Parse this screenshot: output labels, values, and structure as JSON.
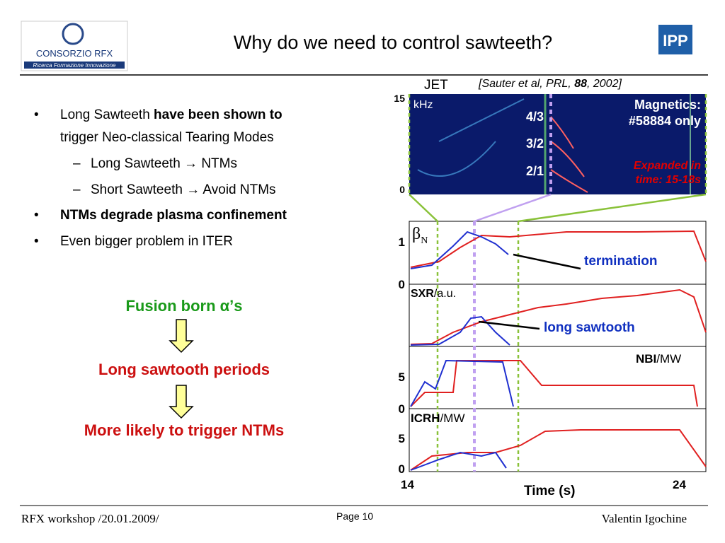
{
  "header": {
    "title": "Why do we need to control sawteeth?",
    "logo_left": "CONSORZIO RFX",
    "logo_sub": "Ricerca Formazione Innovazione",
    "logo_right": "IPP"
  },
  "bullets": [
    {
      "text": "Long Sawteeth ",
      "bold": "have been shown to",
      "rest": "trigger Neo-classical Tearing Modes"
    },
    {
      "sub": [
        "Long Sawteeth → NTMs",
        "Short Sawteeth → Avoid NTMs"
      ]
    },
    {
      "bold": "NTMs degrade plasma confinement"
    },
    {
      "text": "Even bigger problem in ITER"
    }
  ],
  "flow": [
    "Fusion born α’s",
    "Long sawtooth periods",
    "More likely to trigger NTMs"
  ],
  "figure": {
    "jet": "JET",
    "citation": {
      "a": "[Sauter et al, PRL, ",
      "b": "88",
      "c": ", 2002]"
    },
    "khz": "kHz",
    "magnetics": [
      "Magnetics:",
      "#58884 only"
    ],
    "modes": [
      "4/3",
      "3/2",
      "2/1"
    ],
    "expanded": [
      "Expanded  in",
      "time: 15-18s"
    ],
    "ticks": [
      "15",
      "0",
      "1",
      "0",
      "5",
      "0",
      "5",
      "0"
    ],
    "xticks": [
      "14",
      "24"
    ],
    "xlabel": "Time (s)",
    "beta": "β",
    "beta_sub": "N",
    "termination": "termination",
    "sxr": "SXR",
    "sxr_unit": "/a.u.",
    "long_sawtooth": "long sawtooth",
    "nbi": "NBI",
    "nbi_unit": "/MW",
    "icrh": "ICRH",
    "icrh_unit": "/MW"
  },
  "footer": {
    "left": "RFX workshop /20.01.2009/",
    "page": "Page 10",
    "right": "Valentin Igochine"
  }
}
